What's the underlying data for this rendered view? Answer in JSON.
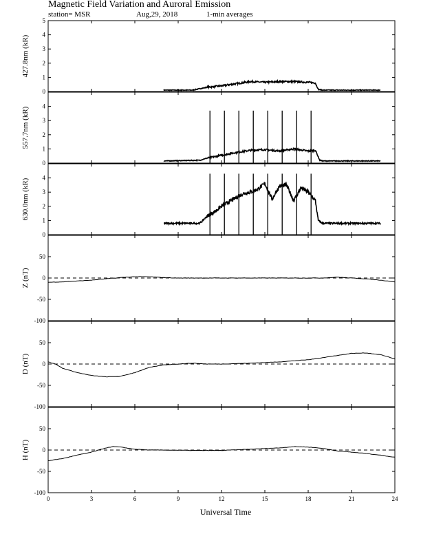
{
  "header": {
    "title": "Magnetic Field Variation and Auroral Emission",
    "station": "station= MSR",
    "date": "Aug,29, 2018",
    "averaging": "1-min averages"
  },
  "chart_data": [
    {
      "type": "line",
      "ylabel": "427.8nm (kR)",
      "ylim": [
        0,
        5
      ],
      "yticks": [
        "0",
        "1",
        "2",
        "3",
        "4",
        "5"
      ],
      "series": [
        {
          "x": [
            8,
            10,
            10.5,
            11,
            12,
            13,
            14,
            15,
            16,
            17,
            18,
            18.5,
            18.7,
            19,
            23
          ],
          "y": [
            0.1,
            0.1,
            0.2,
            0.3,
            0.4,
            0.55,
            0.7,
            0.65,
            0.7,
            0.7,
            0.65,
            0.6,
            0.15,
            0.1,
            0.1
          ]
        }
      ]
    },
    {
      "type": "line",
      "ylabel": "557.7nm (kR)",
      "ylim": [
        0,
        5
      ],
      "yticks": [
        "0",
        "1",
        "2",
        "3",
        "4"
      ],
      "series": [
        {
          "x": [
            8,
            10.5,
            11,
            12,
            13,
            14,
            15,
            16,
            17,
            18,
            18.5,
            18.8,
            19,
            23
          ],
          "y": [
            0.15,
            0.2,
            0.35,
            0.55,
            0.75,
            0.9,
            0.95,
            0.85,
            1.0,
            0.85,
            0.9,
            0.2,
            0.15,
            0.15
          ]
        }
      ],
      "vertical_lines": {
        "x": [
          11.2,
          12.2,
          13.2,
          14.2,
          15.2,
          16.2,
          17.2,
          18.2
        ],
        "top": 3.7
      }
    },
    {
      "type": "line",
      "ylabel": "630.0nm (kR)",
      "ylim": [
        0,
        5
      ],
      "yticks": [
        "0",
        "1",
        "2",
        "3",
        "4"
      ],
      "series": [
        {
          "x": [
            8,
            10.5,
            11,
            11.5,
            12,
            12.5,
            13,
            13.5,
            14,
            14.5,
            15,
            15.5,
            16,
            16.5,
            17,
            17.5,
            18,
            18.5,
            18.7,
            19,
            23
          ],
          "y": [
            0.8,
            0.8,
            1.3,
            1.6,
            2.0,
            2.3,
            2.6,
            2.9,
            3.0,
            3.2,
            3.6,
            2.5,
            3.4,
            3.5,
            2.4,
            3.3,
            3.0,
            2.4,
            1.0,
            0.8,
            0.8
          ]
        }
      ],
      "vertical_lines": {
        "x": [
          11.2,
          12.2,
          13.2,
          14.2,
          15.2,
          16.2,
          17.2,
          18.2
        ],
        "top": 4.3
      }
    },
    {
      "type": "line",
      "ylabel": "Z (nT)",
      "ylim": [
        -100,
        100
      ],
      "yticks": [
        "-100",
        "-50",
        "0",
        "50"
      ],
      "series": [
        {
          "x": [
            0,
            1,
            2,
            3,
            4,
            5,
            6,
            7,
            8,
            9,
            10,
            12,
            14,
            16,
            18,
            19,
            20,
            21,
            22,
            23,
            24
          ],
          "y": [
            -10,
            -9,
            -7,
            -5,
            -2,
            1,
            3,
            3,
            1,
            0,
            0,
            0,
            0,
            0,
            0,
            0,
            2,
            0,
            -2,
            -5,
            -9
          ]
        }
      ],
      "zero_line": true
    },
    {
      "type": "line",
      "ylabel": "D (nT)",
      "ylim": [
        -100,
        100
      ],
      "yticks": [
        "-100",
        "-50",
        "0",
        "50"
      ],
      "series": [
        {
          "x": [
            0,
            0.5,
            1,
            2,
            3,
            4,
            5,
            6,
            7,
            8,
            9,
            10,
            11,
            12,
            14,
            16,
            18,
            19,
            20,
            21,
            22,
            23,
            24
          ],
          "y": [
            5,
            0,
            -10,
            -20,
            -27,
            -30,
            -29,
            -20,
            -8,
            -2,
            0,
            2,
            0,
            0,
            2,
            5,
            10,
            15,
            20,
            25,
            26,
            22,
            12
          ]
        }
      ],
      "zero_line": true
    },
    {
      "type": "line",
      "ylabel": "H (nT)",
      "ylim": [
        -100,
        100
      ],
      "yticks": [
        "-100",
        "-50",
        "0",
        "50"
      ],
      "series": [
        {
          "x": [
            0,
            1,
            2,
            3,
            4,
            4.5,
            5,
            6,
            7,
            8,
            10,
            12,
            14,
            16,
            17,
            18,
            19,
            20,
            21,
            22,
            23,
            24
          ],
          "y": [
            -25,
            -20,
            -12,
            -5,
            5,
            8,
            7,
            2,
            0,
            0,
            -1,
            -1,
            2,
            5,
            8,
            7,
            4,
            -2,
            -5,
            -8,
            -12,
            -17
          ]
        }
      ],
      "zero_line": true
    }
  ],
  "x_axis": {
    "label": "Universal Time",
    "range": [
      0,
      24
    ],
    "ticks": [
      0,
      3,
      6,
      9,
      12,
      15,
      18,
      21,
      24
    ],
    "tick_labels": [
      "0",
      "3",
      "6",
      "9",
      "12",
      "15",
      "18",
      "21",
      "24"
    ]
  }
}
